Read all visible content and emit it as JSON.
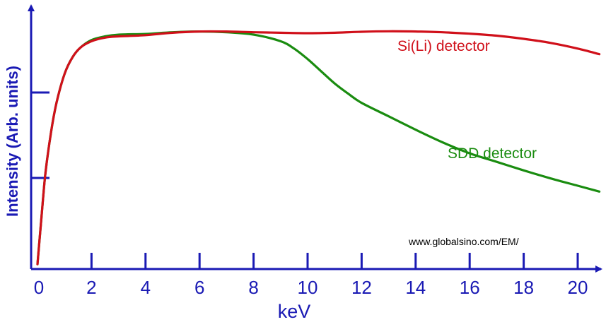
{
  "chart_data": {
    "type": "line",
    "title": "",
    "xlabel": "keV",
    "ylabel": "Intensity (Arb. units)",
    "x_ticks": [
      "0",
      "2",
      "4",
      "6",
      "8",
      "10",
      "12",
      "14",
      "16",
      "18",
      "20"
    ],
    "xlim": [
      -0.4,
      21.4
    ],
    "ylim": [
      0,
      1
    ],
    "grid": false,
    "series": [
      {
        "name": "Si(Li) detector",
        "color": "#d0101a",
        "points": [
          [
            0,
            0.02
          ],
          [
            0.1,
            0.15
          ],
          [
            0.2,
            0.28
          ],
          [
            0.3,
            0.4
          ],
          [
            0.5,
            0.56
          ],
          [
            0.7,
            0.68
          ],
          [
            1.0,
            0.8
          ],
          [
            1.3,
            0.87
          ],
          [
            1.6,
            0.91
          ],
          [
            2.0,
            0.935
          ],
          [
            2.5,
            0.95
          ],
          [
            3.0,
            0.955
          ],
          [
            4.0,
            0.96
          ],
          [
            5.0,
            0.97
          ],
          [
            6.0,
            0.975
          ],
          [
            7.0,
            0.975
          ],
          [
            8.0,
            0.972
          ],
          [
            9.0,
            0.97
          ],
          [
            10.0,
            0.968
          ],
          [
            11.0,
            0.97
          ],
          [
            12.0,
            0.974
          ],
          [
            13.0,
            0.976
          ],
          [
            14.0,
            0.975
          ],
          [
            15.0,
            0.972
          ],
          [
            16.0,
            0.966
          ],
          [
            17.0,
            0.958
          ],
          [
            18.0,
            0.945
          ],
          [
            19.0,
            0.928
          ],
          [
            20.0,
            0.905
          ],
          [
            20.8,
            0.882
          ]
        ]
      },
      {
        "name": "SDD detector",
        "color": "#1a8c10",
        "points": [
          [
            0,
            0.02
          ],
          [
            0.1,
            0.15
          ],
          [
            0.2,
            0.28
          ],
          [
            0.3,
            0.4
          ],
          [
            0.5,
            0.56
          ],
          [
            0.7,
            0.68
          ],
          [
            1.0,
            0.8
          ],
          [
            1.3,
            0.87
          ],
          [
            1.6,
            0.91
          ],
          [
            2.0,
            0.94
          ],
          [
            2.5,
            0.955
          ],
          [
            3.0,
            0.962
          ],
          [
            4.0,
            0.965
          ],
          [
            5.0,
            0.972
          ],
          [
            6.0,
            0.975
          ],
          [
            7.0,
            0.972
          ],
          [
            8.0,
            0.962
          ],
          [
            9.0,
            0.935
          ],
          [
            9.5,
            0.905
          ],
          [
            10.0,
            0.862
          ],
          [
            10.5,
            0.812
          ],
          [
            11.0,
            0.762
          ],
          [
            11.5,
            0.72
          ],
          [
            12.0,
            0.682
          ],
          [
            13.0,
            0.627
          ],
          [
            14.0,
            0.572
          ],
          [
            15.0,
            0.52
          ],
          [
            16.0,
            0.475
          ],
          [
            17.0,
            0.44
          ],
          [
            18.0,
            0.405
          ],
          [
            19.0,
            0.372
          ],
          [
            20.0,
            0.342
          ],
          [
            20.8,
            0.318
          ]
        ]
      }
    ],
    "series_label_positions": [
      "upper-right, above curve",
      "middle-right, above curve"
    ],
    "annotation": "www.globalsino.com/EM/",
    "axis_color": "#1a1ab4"
  }
}
